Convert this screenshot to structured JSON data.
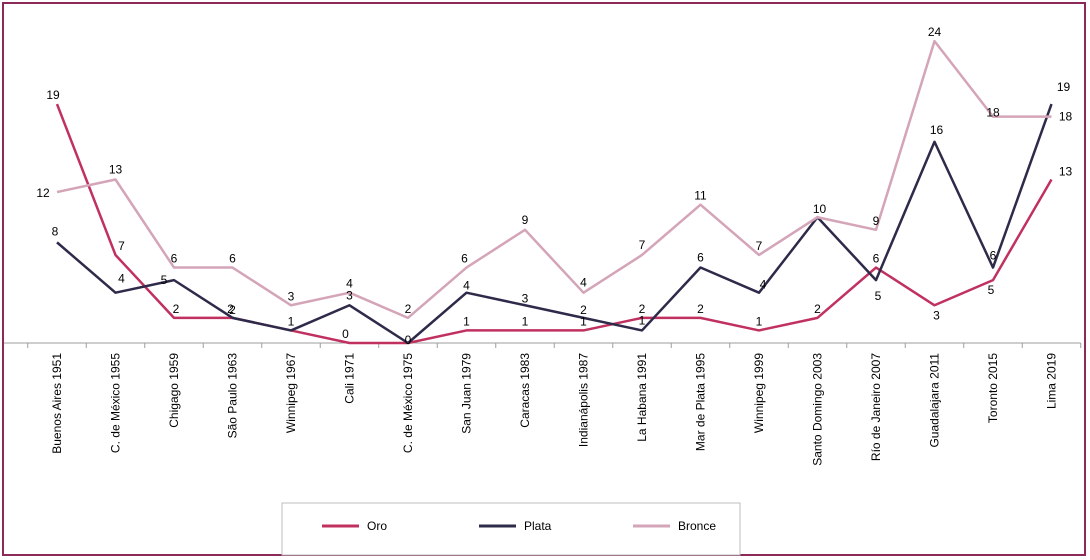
{
  "chart_data": {
    "type": "line",
    "title": "",
    "xlabel": "",
    "ylabel": "",
    "ylim": [
      0,
      26
    ],
    "grid": false,
    "legend_position": "bottom",
    "categories": [
      "Buenos Aires 1951",
      "C. de México 1955",
      "Chigago 1959",
      "São Paulo 1963",
      "Winnipeg 1967",
      "Cali 1971",
      "C. de México 1975",
      "San Juan 1979",
      "Caracas 1983",
      "Indianápolis 1987",
      "La Habana 1991",
      "Mar de Plata 1995",
      "Winnipeg 1999",
      "Santo Domingo 2003",
      "Río de Janeiro 2007",
      "Guadalajara 2011",
      "Toronto 2015",
      "Lima 2019"
    ],
    "series": [
      {
        "name": "Oro",
        "color": "#c0315f",
        "values": [
          19,
          7,
          2,
          2,
          1,
          0,
          0,
          1,
          1,
          1,
          2,
          2,
          1,
          2,
          6,
          3,
          5,
          13
        ],
        "labels": [
          "19",
          "7",
          "2",
          "2",
          "",
          "0",
          "",
          "1",
          "1",
          "1",
          "2",
          "2",
          "1",
          "2",
          "6",
          "3",
          "5",
          "13"
        ]
      },
      {
        "name": "Plata",
        "color": "#2e2b4a",
        "values": [
          8,
          4,
          5,
          2,
          1,
          3,
          0,
          4,
          3,
          2,
          1,
          6,
          4,
          10,
          5,
          16,
          6,
          19
        ],
        "labels": [
          "8",
          "4",
          "5",
          "2",
          "1",
          "3",
          "0",
          "4",
          "3",
          "2",
          "1",
          "6",
          "4",
          "10",
          "5",
          "16",
          "6",
          "19"
        ]
      },
      {
        "name": "Bronce",
        "color": "#d4a4b8",
        "values": [
          12,
          13,
          6,
          6,
          3,
          4,
          2,
          6,
          9,
          4,
          7,
          11,
          7,
          10,
          9,
          24,
          18,
          18
        ],
        "labels": [
          "12",
          "13",
          "6",
          "6",
          "3",
          "4",
          "2",
          "6",
          "9",
          "4",
          "7",
          "11",
          "7",
          "",
          "9",
          "24",
          "18",
          "18"
        ]
      }
    ]
  }
}
